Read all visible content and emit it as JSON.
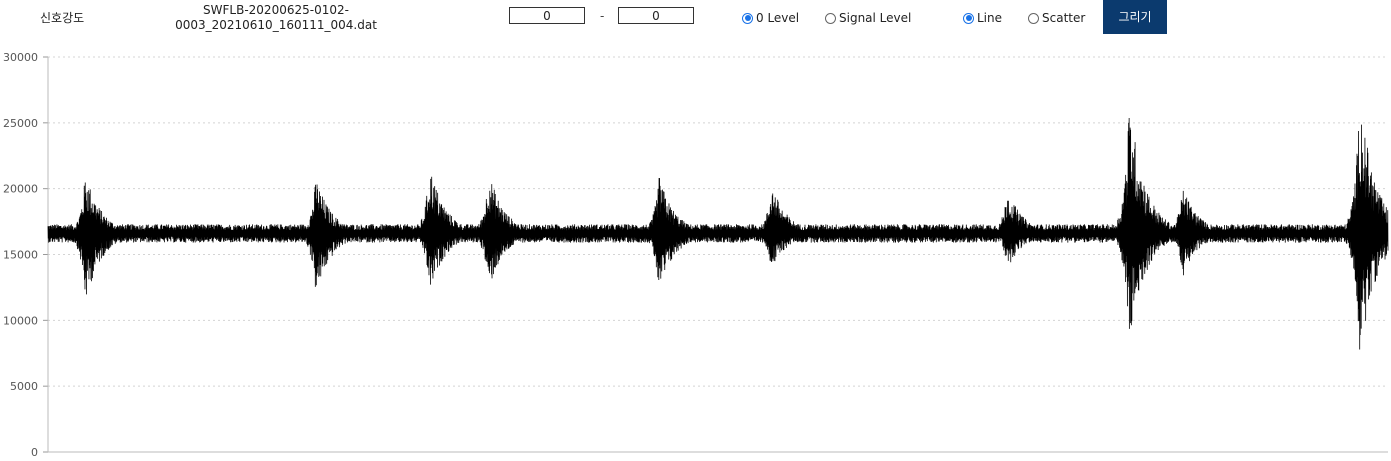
{
  "toolbar": {
    "title": "신호강도",
    "filename_line1": "SWFLB-20200625-0102-",
    "filename_line2": "0003_20210610_160111_004.dat",
    "range_start": "0",
    "range_separator": "-",
    "range_end": "0",
    "level_options": [
      {
        "label": "0 Level",
        "selected": true
      },
      {
        "label": "Signal Level",
        "selected": false
      }
    ],
    "mode_options": [
      {
        "label": "Line",
        "selected": true
      },
      {
        "label": "Scatter",
        "selected": false
      }
    ],
    "draw_button": "그리기",
    "draw_button_color": "#0b3a6e"
  },
  "chart_data": {
    "type": "line",
    "title": "",
    "xlabel": "",
    "ylabel": "",
    "ylim": [
      0,
      30000
    ],
    "yticks": [
      0,
      5000,
      10000,
      15000,
      20000,
      25000,
      30000
    ],
    "yticklabels": [
      "0",
      "5000",
      "10000",
      "15000",
      "20000",
      "25000",
      "30000"
    ],
    "grid": true,
    "x_unit": "sample (fraction of record)",
    "baseline": 16600,
    "noise_amplitude": 700,
    "line_color": "#000000",
    "bursts": [
      {
        "x": 0.028,
        "max": 21300,
        "min": 11300
      },
      {
        "x": 0.2,
        "max": 20900,
        "min": 11800
      },
      {
        "x": 0.285,
        "max": 21800,
        "min": 12100
      },
      {
        "x": 0.329,
        "max": 21300,
        "min": 12300
      },
      {
        "x": 0.456,
        "max": 21000,
        "min": 12000
      },
      {
        "x": 0.54,
        "max": 20400,
        "min": 13800
      },
      {
        "x": 0.716,
        "max": 20000,
        "min": 13900
      },
      {
        "x": 0.807,
        "max": 26700,
        "min": 8100
      },
      {
        "x": 0.847,
        "max": 20200,
        "min": 13300
      },
      {
        "x": 0.979,
        "max": 27100,
        "min": 7000
      }
    ]
  }
}
